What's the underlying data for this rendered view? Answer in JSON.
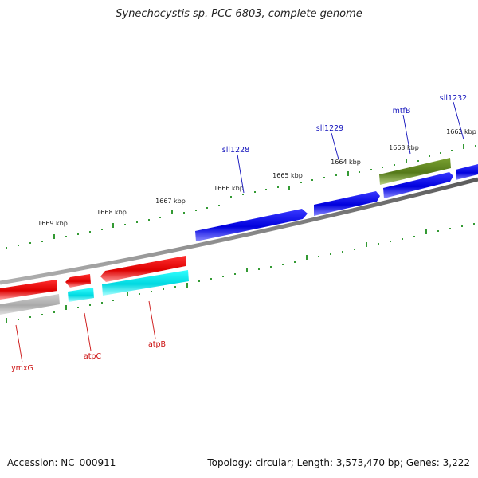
{
  "title": "Synechocystis sp. PCC 6803, complete genome",
  "footer": {
    "accession": "Accession: NC_000911",
    "topology": "Topology: circular; Length: 3,573,470 bp; Genes: 3,222"
  },
  "colors": {
    "forward_gene": "#0000ee",
    "reverse_gene": "#ee0000",
    "rna_gene": "#00e5ee",
    "pseudo_gene": "#c0c0c0",
    "highlight_gene": "#6b8e23",
    "tick": "#008000",
    "backbone": "#808080"
  },
  "kbp_labels": [
    "1662 kbp",
    "1663 kbp",
    "1664 kbp",
    "1665 kbp",
    "1666 kbp",
    "1667 kbp",
    "1668 kbp",
    "1669 kbp"
  ],
  "gene_labels": [
    "sll1232",
    "mtfB",
    "sll1229",
    "sll1228",
    "atpB",
    "atpC",
    "ymxG"
  ],
  "genes": [
    {
      "name": "sll1232",
      "strand": "+",
      "kind": "forward_gene"
    },
    {
      "name": "mtfB",
      "strand": "+",
      "kind": "highlight_gene"
    },
    {
      "name": "sll1229",
      "strand": "+",
      "kind": "forward_gene"
    },
    {
      "name": "sll1228",
      "strand": "+",
      "kind": "forward_gene"
    },
    {
      "name": "atpB",
      "strand": "-",
      "kind": "reverse_gene"
    },
    {
      "name": "atpC",
      "strand": "-",
      "kind": "reverse_gene"
    },
    {
      "name": "ymxG",
      "strand": "-",
      "kind": "reverse_gene"
    }
  ]
}
